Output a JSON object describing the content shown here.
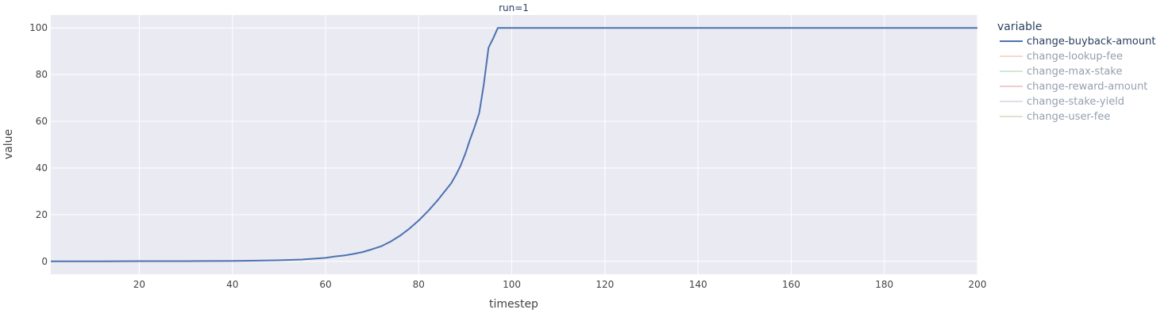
{
  "chart_data": {
    "type": "line",
    "title": "run=1",
    "xlabel": "timestep",
    "ylabel": "value",
    "xlim": [
      1,
      200
    ],
    "ylim": [
      -5.5,
      105.5
    ],
    "x_ticks": [
      20,
      40,
      60,
      80,
      100,
      120,
      140,
      160,
      180,
      200
    ],
    "y_ticks": [
      0,
      20,
      40,
      60,
      80,
      100
    ],
    "grid": true,
    "legend_title": "variable",
    "legend_position": "right",
    "series": [
      {
        "name": "change-buyback-amount",
        "color": "#4c72b0",
        "visible": true,
        "x": [
          1,
          10,
          20,
          30,
          40,
          45,
          50,
          55,
          58,
          60,
          62,
          64,
          66,
          68,
          70,
          72,
          74,
          76,
          78,
          80,
          82,
          84,
          85,
          86,
          87,
          88,
          89,
          90,
          91,
          92,
          93,
          94,
          95,
          96,
          97,
          100,
          120,
          140,
          160,
          180,
          200
        ],
        "y": [
          0,
          0,
          0.1,
          0.1,
          0.2,
          0.3,
          0.5,
          0.8,
          1.2,
          1.5,
          2.1,
          2.5,
          3.2,
          4,
          5.2,
          6.5,
          8.5,
          11,
          14,
          17.5,
          21.5,
          26,
          28.5,
          31,
          33.5,
          37,
          41,
          46,
          52,
          57.5,
          63.5,
          76,
          91.5,
          95.5,
          100,
          100,
          100,
          100,
          100,
          100,
          100
        ]
      },
      {
        "name": "change-lookup-fee",
        "color": "#f4b39a",
        "visible": false,
        "x": [],
        "y": []
      },
      {
        "name": "change-max-stake",
        "color": "#a3d4ac",
        "visible": false,
        "x": [],
        "y": []
      },
      {
        "name": "change-reward-amount",
        "color": "#e3979c",
        "visible": false,
        "x": [],
        "y": []
      },
      {
        "name": "change-stake-yield",
        "color": "#c3bde0",
        "visible": false,
        "x": [],
        "y": []
      },
      {
        "name": "change-user-fee",
        "color": "#c4c4a2",
        "visible": false,
        "x": [],
        "y": []
      }
    ]
  }
}
